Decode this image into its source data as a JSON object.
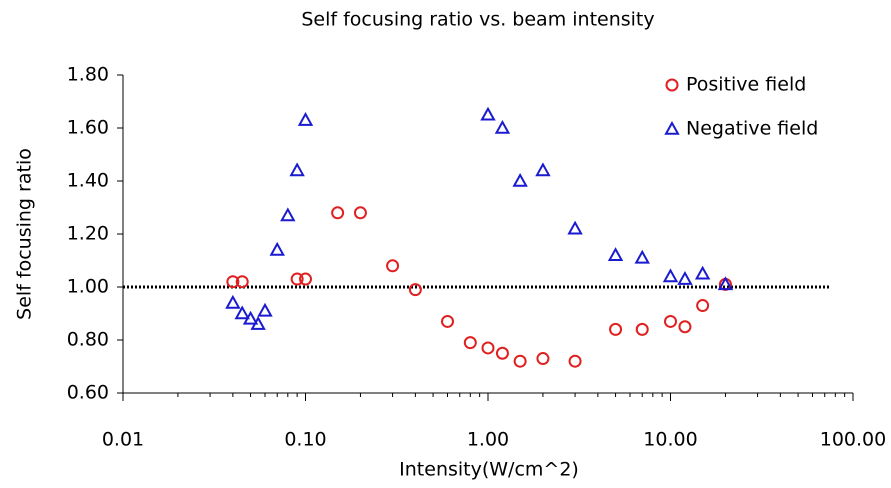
{
  "chart_data": {
    "type": "scatter",
    "title": "Self focusing ratio vs. beam intensity",
    "x_label": "Intensity(W/cm^2)",
    "y_label": "Self focusing ratio",
    "x_scale": "log",
    "grid": false,
    "legend": "top-right",
    "xlim": [
      0.01,
      100
    ],
    "ylim": [
      0.6,
      1.8
    ],
    "xticks": [
      {
        "value": 0.01,
        "label": "0.01"
      },
      {
        "value": 0.1,
        "label": "0.10"
      },
      {
        "value": 1,
        "label": "1.00"
      },
      {
        "value": 10,
        "label": "10.00"
      },
      {
        "value": 100,
        "label": "100.00"
      }
    ],
    "yticks": [
      {
        "value": 0.6,
        "label": "0.60"
      },
      {
        "value": 0.8,
        "label": "0.80"
      },
      {
        "value": 1.0,
        "label": "1.00"
      },
      {
        "value": 1.2,
        "label": "1.20"
      },
      {
        "value": 1.4,
        "label": "1.40"
      },
      {
        "value": 1.6,
        "label": "1.60"
      },
      {
        "value": 1.8,
        "label": "1.80"
      }
    ],
    "reference_line": 1.0,
    "series": [
      {
        "name": "Positive field",
        "color": "#e02020",
        "marker": "circle",
        "x": [
          0.04,
          0.045,
          0.09,
          0.1,
          0.15,
          0.2,
          0.3,
          0.4,
          0.6,
          0.8,
          1.0,
          1.2,
          1.5,
          2.0,
          3.0,
          5,
          7,
          10,
          12,
          15,
          20
        ],
        "values": [
          1.02,
          1.02,
          1.03,
          1.03,
          1.28,
          1.28,
          1.08,
          0.99,
          0.87,
          0.79,
          0.77,
          0.75,
          0.72,
          0.73,
          0.72,
          0.84,
          0.84,
          0.87,
          0.85,
          0.93,
          1.01
        ]
      },
      {
        "name": "Negative field",
        "color": "#1a1ad0",
        "marker": "triangle",
        "x": [
          0.04,
          0.045,
          0.05,
          0.055,
          0.06,
          0.07,
          0.08,
          0.09,
          0.1,
          1.0,
          1.2,
          1.5,
          2.0,
          3,
          5,
          7,
          10,
          12,
          15,
          20
        ],
        "values": [
          0.94,
          0.9,
          0.88,
          0.86,
          0.91,
          1.14,
          1.27,
          1.44,
          1.63,
          1.65,
          1.6,
          1.4,
          1.44,
          1.22,
          1.12,
          1.11,
          1.04,
          1.03,
          1.05,
          1.01
        ]
      }
    ]
  }
}
